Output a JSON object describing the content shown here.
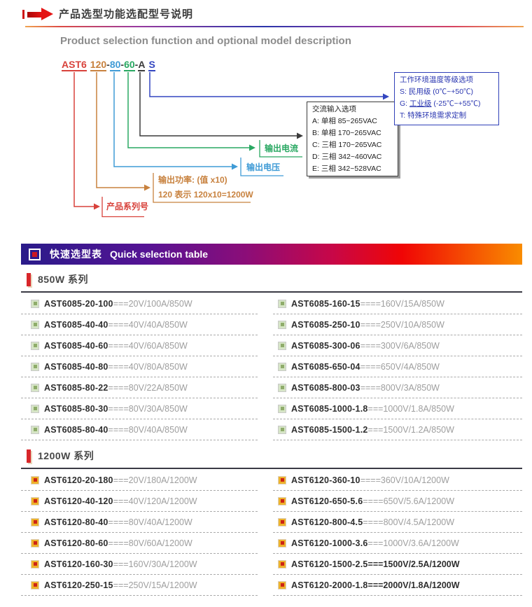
{
  "header": {
    "title": "产品选型功能选配型号说明",
    "subtitle": "Product selection function and optional model description"
  },
  "model": {
    "segments": [
      {
        "text": "AST6",
        "color": "#d8423b"
      },
      {
        "text": "120",
        "color": "#c8823f"
      },
      {
        "text": "80",
        "color": "#3f9bd6"
      },
      {
        "text": "60",
        "color": "#29a862"
      },
      {
        "text": "A",
        "color": "#3c3c3c"
      },
      {
        "text": "S",
        "color": "#3346c0"
      }
    ],
    "labels": {
      "series": "产品系列号",
      "power1": "输出功率: (值 x10)",
      "power2": "120 表示 120x10=1200W",
      "voltage": "输出电压",
      "current": "输出电流"
    },
    "ac_box": {
      "title": "交流输入选项",
      "options": [
        {
          "text": "A: 单相 85~265VAC"
        },
        {
          "text": "B: 单相 170~265VAC"
        },
        {
          "text": "C: 三相 170~265VAC"
        },
        {
          "text": "D: 三相 342~460VAC"
        },
        {
          "text": "E: 三相 342~528VAC"
        }
      ]
    },
    "temp_box": {
      "title": "工作环境温度等级选项",
      "options": [
        {
          "text": "S: 民用级 (0℃~+50℃)"
        },
        {
          "text": "G: 工业级 (-25℃~+55℃)",
          "underline": "工业级"
        },
        {
          "text": "T: 特殊环境需求定制"
        }
      ]
    }
  },
  "table": {
    "banner": {
      "cn": "快速选型表",
      "en": "Quick selection table"
    },
    "sections": [
      {
        "title": "850W 系列",
        "bullet_style": "green",
        "columns": [
          [
            {
              "model": "AST6085-20-100",
              "eq": "===",
              "spec": "20V/100A/850W"
            },
            {
              "model": "AST6085-40-40",
              "eq": "====",
              "spec": "40V/40A/850W"
            },
            {
              "model": "AST6085-40-60",
              "eq": "====",
              "spec": "40V/60A/850W"
            },
            {
              "model": "AST6085-40-80",
              "eq": "====",
              "spec": "40V/80A/850W"
            },
            {
              "model": "AST6085-80-22",
              "eq": "====",
              "spec": "80V/22A/850W"
            },
            {
              "model": "AST6085-80-30",
              "eq": "====",
              "spec": "80V/30A/850W"
            },
            {
              "model": "AST6085-80-40",
              "eq": "====",
              "spec": "80V/40A/850W"
            }
          ],
          [
            {
              "model": "AST6085-160-15",
              "eq": "====",
              "spec": "160V/15A/850W"
            },
            {
              "model": "AST6085-250-10",
              "eq": "====",
              "spec": "250V/10A/850W"
            },
            {
              "model": "AST6085-300-06",
              "eq": "====",
              "spec": "300V/6A/850W"
            },
            {
              "model": "AST6085-650-04",
              "eq": "====",
              "spec": "650V/4A/850W"
            },
            {
              "model": "AST6085-800-03",
              "eq": "====",
              "spec": "800V/3A/850W"
            },
            {
              "model": "AST6085-1000-1.8",
              "eq": "===",
              "spec": "1000V/1.8A/850W"
            },
            {
              "model": "AST6085-1500-1.2",
              "eq": "===",
              "spec": "1500V/1.2A/850W"
            }
          ]
        ]
      },
      {
        "title": "1200W 系列",
        "bullet_style": "red",
        "columns": [
          [
            {
              "model": "AST6120-20-180",
              "eq": "===",
              "spec": "20V/180A/1200W"
            },
            {
              "model": "AST6120-40-120",
              "eq": "===",
              "spec": "40V/120A/1200W"
            },
            {
              "model": "AST6120-80-40",
              "eq": "====",
              "spec": "80V/40A/1200W"
            },
            {
              "model": "AST6120-80-60",
              "eq": "====",
              "spec": "80V/60A/1200W"
            },
            {
              "model": "AST6120-160-30",
              "eq": "===",
              "spec": "160V/30A/1200W"
            },
            {
              "model": "AST6120-250-15",
              "eq": "===",
              "spec": "250V/15A/1200W"
            }
          ],
          [
            {
              "model": "AST6120-360-10",
              "eq": "====",
              "spec": "360V/10A/1200W"
            },
            {
              "model": "AST6120-650-5.6",
              "eq": "====",
              "spec": "650V/5.6A/1200W"
            },
            {
              "model": "AST6120-800-4.5",
              "eq": "====",
              "spec": "800V/4.5A/1200W"
            },
            {
              "model": "AST6120-1000-3.6",
              "eq": "===",
              "spec": "1000V/3.6A/1200W"
            },
            {
              "model": "AST6120-1500-2.5",
              "eq": "===",
              "spec": "1500V/2.5A/1200W",
              "dark": true
            },
            {
              "model": "AST6120-2000-1.8",
              "eq": "===",
              "spec": "2000V/1.8A/1200W",
              "dark": true
            }
          ]
        ]
      }
    ]
  },
  "colors": {
    "series_red": "#d8423b",
    "power_orange": "#c8823f",
    "voltage_blue": "#3f9bd6",
    "current_green": "#29a862",
    "input_black": "#3c3c3c",
    "temp_blue": "#3346c0",
    "banner_start": "#2a1b8a",
    "banner_end": "#f98c00"
  }
}
